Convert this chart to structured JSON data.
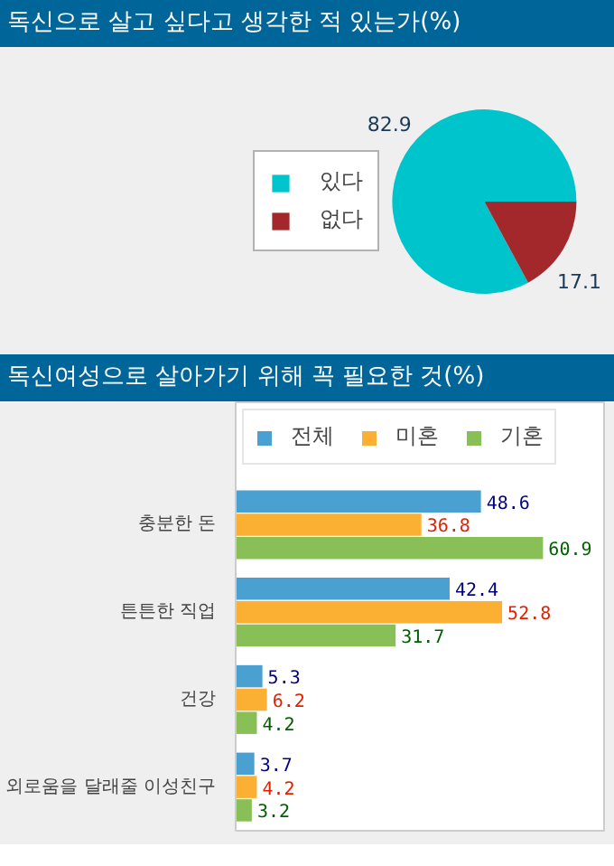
{
  "chart_data": [
    {
      "type": "pie",
      "title": "독신으로 살고 싶다고 생각한 적 있는가(%)",
      "categories": [
        "있다",
        "없다"
      ],
      "values": [
        82.9,
        17.1
      ],
      "colors": [
        "#00c4cc",
        "#a3282b"
      ],
      "data_labels": true,
      "legend": "left"
    },
    {
      "type": "bar",
      "orientation": "horizontal",
      "title": "독신여성으로 살아가기 위해 꼭 필요한 것(%)",
      "categories": [
        "충분한 돈",
        "튼튼한 직업",
        "건강",
        "외로움을 달래줄 이성친구"
      ],
      "series": [
        {
          "name": "전체",
          "color": "#4aa0d0",
          "values": [
            48.6,
            42.4,
            5.3,
            3.7
          ]
        },
        {
          "name": "미혼",
          "color": "#fbb034",
          "values": [
            36.8,
            52.8,
            6.2,
            4.2
          ]
        },
        {
          "name": "기혼",
          "color": "#88c057",
          "values": [
            60.9,
            31.7,
            4.2,
            3.2
          ]
        }
      ],
      "xlim": [
        0,
        73
      ],
      "tick_labels": "y",
      "data_labels": true,
      "legend": "top",
      "grid": false
    }
  ]
}
